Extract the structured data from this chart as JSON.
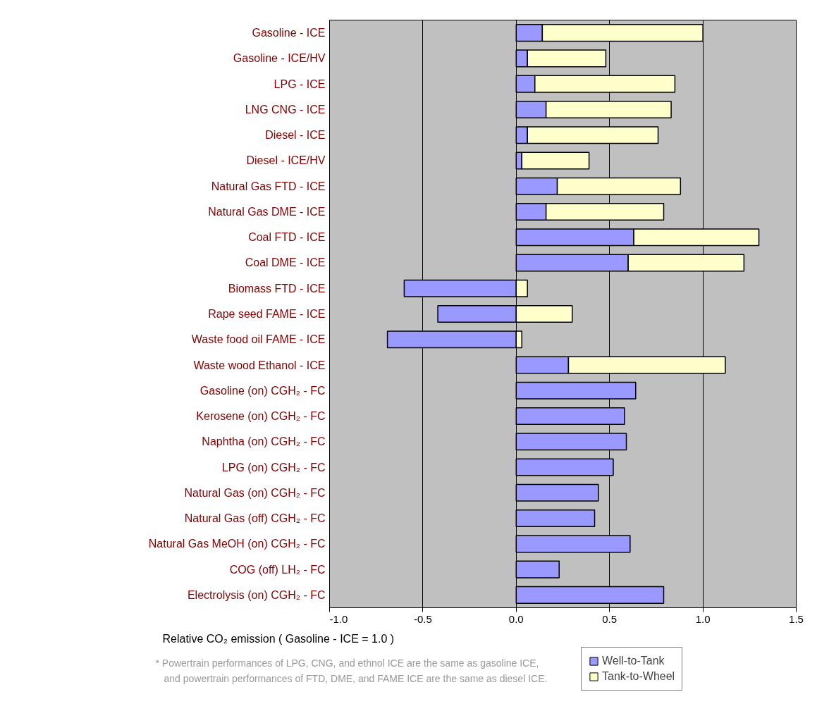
{
  "chart_data": {
    "type": "bar",
    "orientation": "horizontal",
    "stacked": true,
    "xlabel": "Relative CO₂ emission ( Gasoline - ICE = 1.0 )",
    "categories": [
      "Gasoline - ICE",
      "Gasoline - ICE/HV",
      "LPG - ICE",
      "LNG CNG - ICE",
      "Diesel - ICE",
      "Diesel - ICE/HV",
      "Natural Gas FTD - ICE",
      "Natural Gas DME - ICE",
      "Coal FTD - ICE",
      "Coal DME - ICE",
      "Biomass FTD - ICE",
      "Rape seed FAME - ICE",
      "Waste food oil FAME - ICE",
      "Waste wood Ethanol - ICE",
      "Gasoline (on) CGH₂ - FC",
      "Kerosene (on) CGH₂ - FC",
      "Naphtha (on) CGH₂ - FC",
      "LPG (on) CGH₂ - FC",
      "Natural Gas (on) CGH₂ - FC",
      "Natural Gas (off) CGH₂ - FC",
      "Natural Gas MeOH (on) CGH₂ - FC",
      "COG (off) LH₂ - FC",
      "Electrolysis (on) CGH₂ - FC"
    ],
    "series": [
      {
        "name": "Well-to-Tank",
        "color": "#9999ff",
        "values": [
          0.14,
          0.06,
          0.1,
          0.16,
          0.06,
          0.03,
          0.22,
          0.16,
          0.63,
          0.6,
          -0.6,
          -0.42,
          -0.69,
          0.28,
          0.64,
          0.58,
          0.59,
          0.52,
          0.44,
          0.42,
          0.61,
          0.23,
          0.79
        ]
      },
      {
        "name": "Tank-to-Wheel",
        "color": "#ffffcc",
        "values": [
          0.86,
          0.42,
          0.75,
          0.67,
          0.7,
          0.36,
          0.66,
          0.63,
          0.67,
          0.62,
          0.06,
          0.3,
          0.03,
          0.84,
          null,
          null,
          null,
          null,
          null,
          null,
          null,
          null,
          null
        ]
      }
    ],
    "xlim": [
      -1.0,
      1.5
    ],
    "xticks": [
      {
        "value": -1.0,
        "label": "-1.0"
      },
      {
        "value": -0.5,
        "label": "-0.5"
      },
      {
        "value": 0,
        "label": "0.0"
      },
      {
        "value": 0.5,
        "label": "0.5"
      },
      {
        "value": 1.0,
        "label": "1.0"
      },
      {
        "value": 1.5,
        "label": "1.5"
      }
    ],
    "grid": "x",
    "legend": "bottom right",
    "annotations": [
      "* Powertrain performances of LPG, CNG, and ethnol ICE are the same as gasoline ICE,",
      "and powertrain performances of FTD, DME, and FAME ICE are the same as diesel ICE."
    ]
  }
}
